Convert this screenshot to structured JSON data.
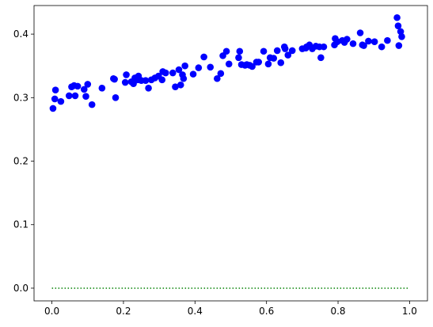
{
  "chart_data": {
    "type": "scatter",
    "title": "",
    "xlabel": "",
    "ylabel": "",
    "xlim": [
      -0.05,
      1.05
    ],
    "ylim": [
      -0.02,
      0.445
    ],
    "x_ticks": [
      0.0,
      0.2,
      0.4,
      0.6,
      0.8,
      1.0
    ],
    "x_tick_labels": [
      "0.0",
      "0.2",
      "0.4",
      "0.6",
      "0.8",
      "1.0"
    ],
    "y_ticks": [
      0.0,
      0.1,
      0.2,
      0.3,
      0.4
    ],
    "y_tick_labels": [
      "0.0",
      "0.1",
      "0.2",
      "0.3",
      "0.4"
    ],
    "grid": false,
    "legend": "none",
    "colors": {
      "points": "#0000ff",
      "zero_line": "#008000",
      "axes": "#000000"
    },
    "series": [
      {
        "type": "scatter",
        "x": [
          0.003,
          0.008,
          0.01,
          0.025,
          0.048,
          0.055,
          0.062,
          0.065,
          0.072,
          0.09,
          0.095,
          0.1,
          0.112,
          0.14,
          0.172,
          0.175,
          0.178,
          0.205,
          0.208,
          0.222,
          0.228,
          0.232,
          0.24,
          0.242,
          0.25,
          0.262,
          0.27,
          0.278,
          0.288,
          0.298,
          0.308,
          0.31,
          0.318,
          0.338,
          0.345,
          0.355,
          0.36,
          0.365,
          0.368,
          0.372,
          0.395,
          0.41,
          0.425,
          0.443,
          0.462,
          0.472,
          0.478,
          0.488,
          0.495,
          0.522,
          0.525,
          0.53,
          0.54,
          0.545,
          0.553,
          0.56,
          0.572,
          0.578,
          0.592,
          0.605,
          0.61,
          0.62,
          0.63,
          0.64,
          0.65,
          0.652,
          0.66,
          0.672,
          0.7,
          0.71,
          0.712,
          0.72,
          0.728,
          0.738,
          0.748,
          0.752,
          0.76,
          0.79,
          0.792,
          0.798,
          0.812,
          0.818,
          0.825,
          0.842,
          0.862,
          0.868,
          0.872,
          0.885,
          0.902,
          0.922,
          0.938,
          0.965,
          0.968,
          0.97,
          0.975,
          0.978
        ],
        "y": [
          0.283,
          0.298,
          0.312,
          0.294,
          0.303,
          0.317,
          0.319,
          0.303,
          0.318,
          0.313,
          0.302,
          0.321,
          0.289,
          0.315,
          0.33,
          0.329,
          0.3,
          0.324,
          0.336,
          0.325,
          0.322,
          0.331,
          0.328,
          0.334,
          0.327,
          0.327,
          0.315,
          0.328,
          0.331,
          0.334,
          0.328,
          0.341,
          0.339,
          0.339,
          0.317,
          0.344,
          0.32,
          0.336,
          0.33,
          0.35,
          0.337,
          0.347,
          0.364,
          0.348,
          0.33,
          0.338,
          0.366,
          0.373,
          0.353,
          0.363,
          0.373,
          0.352,
          0.351,
          0.352,
          0.351,
          0.349,
          0.356,
          0.356,
          0.373,
          0.353,
          0.363,
          0.362,
          0.374,
          0.355,
          0.38,
          0.377,
          0.367,
          0.374,
          0.377,
          0.378,
          0.38,
          0.383,
          0.377,
          0.381,
          0.38,
          0.363,
          0.38,
          0.383,
          0.393,
          0.388,
          0.39,
          0.387,
          0.392,
          0.385,
          0.402,
          0.383,
          0.382,
          0.389,
          0.388,
          0.38,
          0.39,
          0.426,
          0.413,
          0.382,
          0.404,
          0.396
        ]
      },
      {
        "type": "line",
        "style": "dotted",
        "x": [
          0.0,
          1.0
        ],
        "y": [
          0.0,
          0.0
        ]
      }
    ]
  }
}
